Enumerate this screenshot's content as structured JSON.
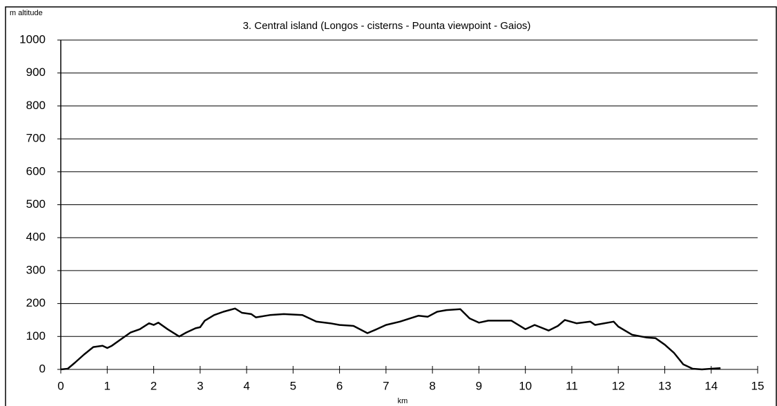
{
  "chart_data": {
    "type": "line",
    "title": "3. Central island (Longos - cisterns - Pounta viewpoint - Gaios)",
    "y_label": "m altitude",
    "x_label": "km",
    "xlim": [
      0,
      15
    ],
    "xticks": [
      0,
      1,
      2,
      3,
      4,
      5,
      6,
      7,
      8,
      9,
      10,
      11,
      12,
      13,
      14,
      15
    ],
    "ylim": [
      0,
      1000
    ],
    "yticks": [
      0,
      100,
      200,
      300,
      400,
      500,
      600,
      700,
      800,
      900,
      1000
    ],
    "grid": true,
    "x": [
      0,
      0.15,
      0.3,
      0.5,
      0.7,
      0.9,
      1.0,
      1.1,
      1.3,
      1.5,
      1.7,
      1.9,
      2.0,
      2.1,
      2.3,
      2.55,
      2.7,
      2.9,
      3.0,
      3.1,
      3.3,
      3.5,
      3.75,
      3.9,
      4.1,
      4.2,
      4.5,
      4.8,
      5.2,
      5.5,
      5.8,
      6.0,
      6.3,
      6.6,
      6.8,
      7.0,
      7.3,
      7.7,
      7.9,
      8.1,
      8.3,
      8.6,
      8.8,
      9.0,
      9.2,
      9.7,
      10.0,
      10.2,
      10.5,
      10.7,
      10.85,
      11.1,
      11.4,
      11.5,
      11.9,
      12.0,
      12.3,
      12.6,
      12.8,
      13.0,
      13.2,
      13.4,
      13.6,
      13.8,
      14.0,
      14.2
    ],
    "series": [
      {
        "name": "altitude",
        "color": "#000000",
        "values": [
          0,
          2,
          20,
          45,
          68,
          72,
          65,
          72,
          92,
          112,
          122,
          140,
          135,
          142,
          122,
          100,
          112,
          125,
          128,
          148,
          165,
          175,
          185,
          172,
          168,
          158,
          165,
          168,
          165,
          145,
          140,
          135,
          132,
          110,
          122,
          135,
          145,
          163,
          160,
          175,
          180,
          183,
          155,
          142,
          148,
          148,
          122,
          135,
          118,
          132,
          150,
          140,
          145,
          135,
          145,
          130,
          105,
          97,
          95,
          75,
          50,
          15,
          2,
          0,
          2,
          4
        ]
      }
    ]
  }
}
